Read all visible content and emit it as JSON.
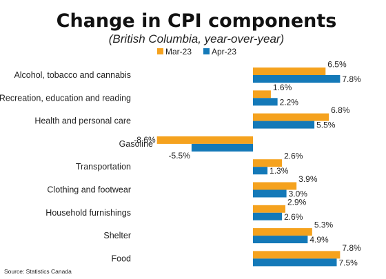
{
  "chart_data": {
    "type": "bar",
    "orientation": "horizontal",
    "title": "Change in CPI components",
    "subtitle": "(British Columbia, year-over-year)",
    "source": "Source: Statistics Canada",
    "categories": [
      "Alcohol, tobacco and cannabis",
      "Recreation, education and reading",
      "Health and personal care",
      "Gasoline",
      "Transportation",
      "Clothing and footwear",
      "Household furnishings",
      "Shelter",
      "Food"
    ],
    "series": [
      {
        "name": "Mar-23",
        "color": "#F5A21E",
        "values": [
          6.5,
          1.6,
          6.8,
          -8.6,
          2.6,
          3.9,
          2.9,
          5.3,
          7.8
        ],
        "labels": [
          "6.5%",
          "1.6%",
          "6.8%",
          "-8.6%",
          "2.6%",
          "3.9%",
          "2.9%",
          "5.3%",
          "7.8%"
        ]
      },
      {
        "name": "Apr-23",
        "color": "#1479B8",
        "values": [
          7.8,
          2.2,
          5.5,
          -5.5,
          1.3,
          3.0,
          2.6,
          4.9,
          7.5
        ],
        "labels": [
          "7.8%",
          "2.2%",
          "5.5%",
          "-5.5%",
          "1.3%",
          "3.0%",
          "2.6%",
          "4.9%",
          "7.5%"
        ]
      }
    ],
    "xlim": [
      -8.6,
      7.8
    ],
    "legend_position": "top-center",
    "grid": false
  }
}
